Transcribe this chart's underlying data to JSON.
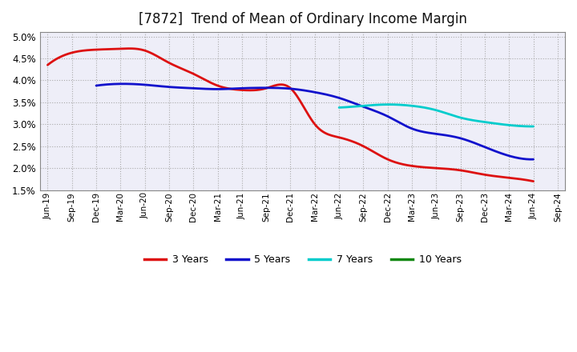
{
  "title": "[7872]  Trend of Mean of Ordinary Income Margin",
  "title_fontsize": 12,
  "background_color": "#ffffff",
  "plot_background": "#eeeef8",
  "ylim": [
    0.015,
    0.051
  ],
  "yticks": [
    0.015,
    0.02,
    0.025,
    0.03,
    0.035,
    0.04,
    0.045,
    0.05
  ],
  "x_labels": [
    "Jun-19",
    "Sep-19",
    "Dec-19",
    "Mar-20",
    "Jun-20",
    "Sep-20",
    "Dec-20",
    "Mar-21",
    "Jun-21",
    "Sep-21",
    "Dec-21",
    "Mar-22",
    "Jun-22",
    "Sep-22",
    "Dec-22",
    "Mar-23",
    "Jun-23",
    "Sep-23",
    "Dec-23",
    "Mar-24",
    "Jun-24",
    "Sep-24"
  ],
  "series": {
    "3 Years": {
      "color": "#dd1111",
      "linewidth": 2.0,
      "data_x": [
        0,
        1,
        2,
        3,
        4,
        5,
        6,
        7,
        8,
        9,
        10,
        11,
        12,
        13,
        14,
        15,
        16,
        17,
        18,
        19,
        20
      ],
      "data_y": [
        0.0435,
        0.0463,
        0.047,
        0.0472,
        0.0468,
        0.044,
        0.0415,
        0.0388,
        0.0378,
        0.0382,
        0.0382,
        0.03,
        0.027,
        0.025,
        0.022,
        0.0205,
        0.02,
        0.0195,
        0.0185,
        0.0178,
        0.017
      ]
    },
    "5 Years": {
      "color": "#1111cc",
      "linewidth": 2.0,
      "data_x": [
        2,
        3,
        4,
        5,
        6,
        7,
        8,
        9,
        10,
        11,
        12,
        13,
        14,
        15,
        16,
        17,
        18,
        19,
        20
      ],
      "data_y": [
        0.0388,
        0.0392,
        0.039,
        0.0385,
        0.0382,
        0.038,
        0.0382,
        0.0383,
        0.0381,
        0.0373,
        0.036,
        0.034,
        0.0318,
        0.029,
        0.0278,
        0.0268,
        0.0248,
        0.0228,
        0.022
      ]
    },
    "7 Years": {
      "color": "#00cccc",
      "linewidth": 2.0,
      "data_x": [
        12,
        13,
        14,
        15,
        16,
        17,
        18,
        19,
        20
      ],
      "data_y": [
        0.0338,
        0.0342,
        0.0345,
        0.0342,
        0.0332,
        0.0315,
        0.0305,
        0.0298,
        0.0295
      ]
    },
    "10 Years": {
      "color": "#118811",
      "linewidth": 2.0,
      "data_x": [],
      "data_y": []
    }
  },
  "legend_colors": [
    "#dd1111",
    "#1111cc",
    "#00cccc",
    "#118811"
  ],
  "legend_labels": [
    "3 Years",
    "5 Years",
    "7 Years",
    "10 Years"
  ]
}
